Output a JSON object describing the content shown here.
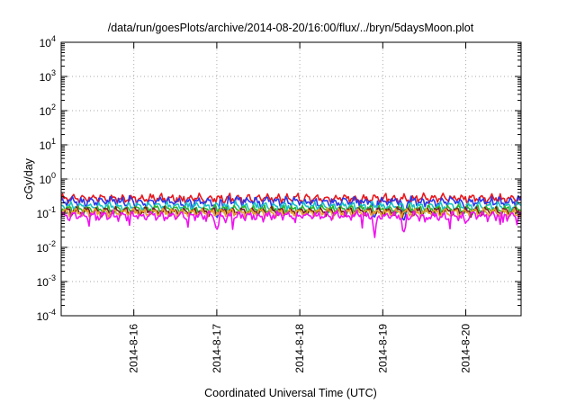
{
  "chart_data": {
    "type": "line",
    "title": "/data/run/goesPlots/archive/2014-08-20/16:00/flux/../bryn/5daysMoon.plot",
    "xlabel": "Coordinated Universal Time (UTC)",
    "ylabel": "cGy/day",
    "y_scale": "log",
    "ylim": [
      0.0001,
      10000
    ],
    "y_ticks": [
      {
        "base": "10",
        "exp": "-4"
      },
      {
        "base": "10",
        "exp": "-3"
      },
      {
        "base": "10",
        "exp": "-2"
      },
      {
        "base": "10",
        "exp": "-1"
      },
      {
        "base": "10",
        "exp": "0"
      },
      {
        "base": "10",
        "exp": "1"
      },
      {
        "base": "10",
        "exp": "2"
      },
      {
        "base": "10",
        "exp": "3"
      },
      {
        "base": "10",
        "exp": "4"
      }
    ],
    "xlim": [
      "2014-08-15T03:00",
      "2014-08-20T16:00"
    ],
    "x_ticks": [
      "2014-8-16",
      "2014-8-17",
      "2014-8-18",
      "2014-8-19",
      "2014-8-20"
    ],
    "x_tick_values": [
      "2014-08-16T00:00",
      "2014-08-17T00:00",
      "2014-08-18T00:00",
      "2014-08-19T00:00",
      "2014-08-20T00:00"
    ],
    "grid": true,
    "series": [
      {
        "color": "#e8181d",
        "level": 0.27,
        "jitter": 0.13
      },
      {
        "color": "#2a36e6",
        "level": 0.22,
        "jitter": 0.18
      },
      {
        "color": "#18c0c6",
        "level": 0.16,
        "jitter": 0.1
      },
      {
        "color": "#2bb52b",
        "level": 0.13,
        "jitter": 0.09
      },
      {
        "color": "#7a1c1c",
        "level": 0.115,
        "jitter": 0.08
      },
      {
        "color": "#e8a02a",
        "level": 0.105,
        "jitter": 0.08
      },
      {
        "color": "#f012f0",
        "level": 0.085,
        "jitter": 0.14
      }
    ],
    "dips": [
      {
        "x": "2014-08-17T00:00",
        "min": 0.03
      },
      {
        "x": "2014-08-17T02:30",
        "min": 0.05
      },
      {
        "x": "2014-08-18T21:30",
        "min": 0.03
      },
      {
        "x": "2014-08-19T06:00",
        "min": 0.025
      },
      {
        "x": "2014-08-20T00:00",
        "min": 0.045
      }
    ]
  }
}
